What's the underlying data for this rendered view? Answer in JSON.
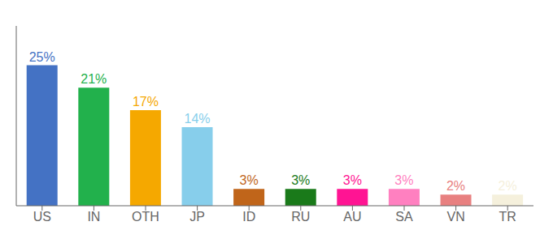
{
  "chart_data": {
    "type": "bar",
    "categories": [
      "US",
      "IN",
      "OTH",
      "JP",
      "ID",
      "RU",
      "AU",
      "SA",
      "VN",
      "TR"
    ],
    "values": [
      25,
      21,
      17,
      14,
      3,
      3,
      3,
      3,
      2,
      2
    ],
    "value_labels": [
      "25%",
      "21%",
      "17%",
      "14%",
      "3%",
      "3%",
      "3%",
      "3%",
      "2%",
      "2%"
    ],
    "colors": [
      "#4472c4",
      "#22b14c",
      "#f5a800",
      "#87ceeb",
      "#c0651a",
      "#1a7a1a",
      "#ff1493",
      "#ff80c0",
      "#e88080",
      "#f5f0dc"
    ],
    "ylim": [
      0,
      32
    ],
    "grid": false,
    "data_labels": true,
    "tick_labels": "x"
  }
}
